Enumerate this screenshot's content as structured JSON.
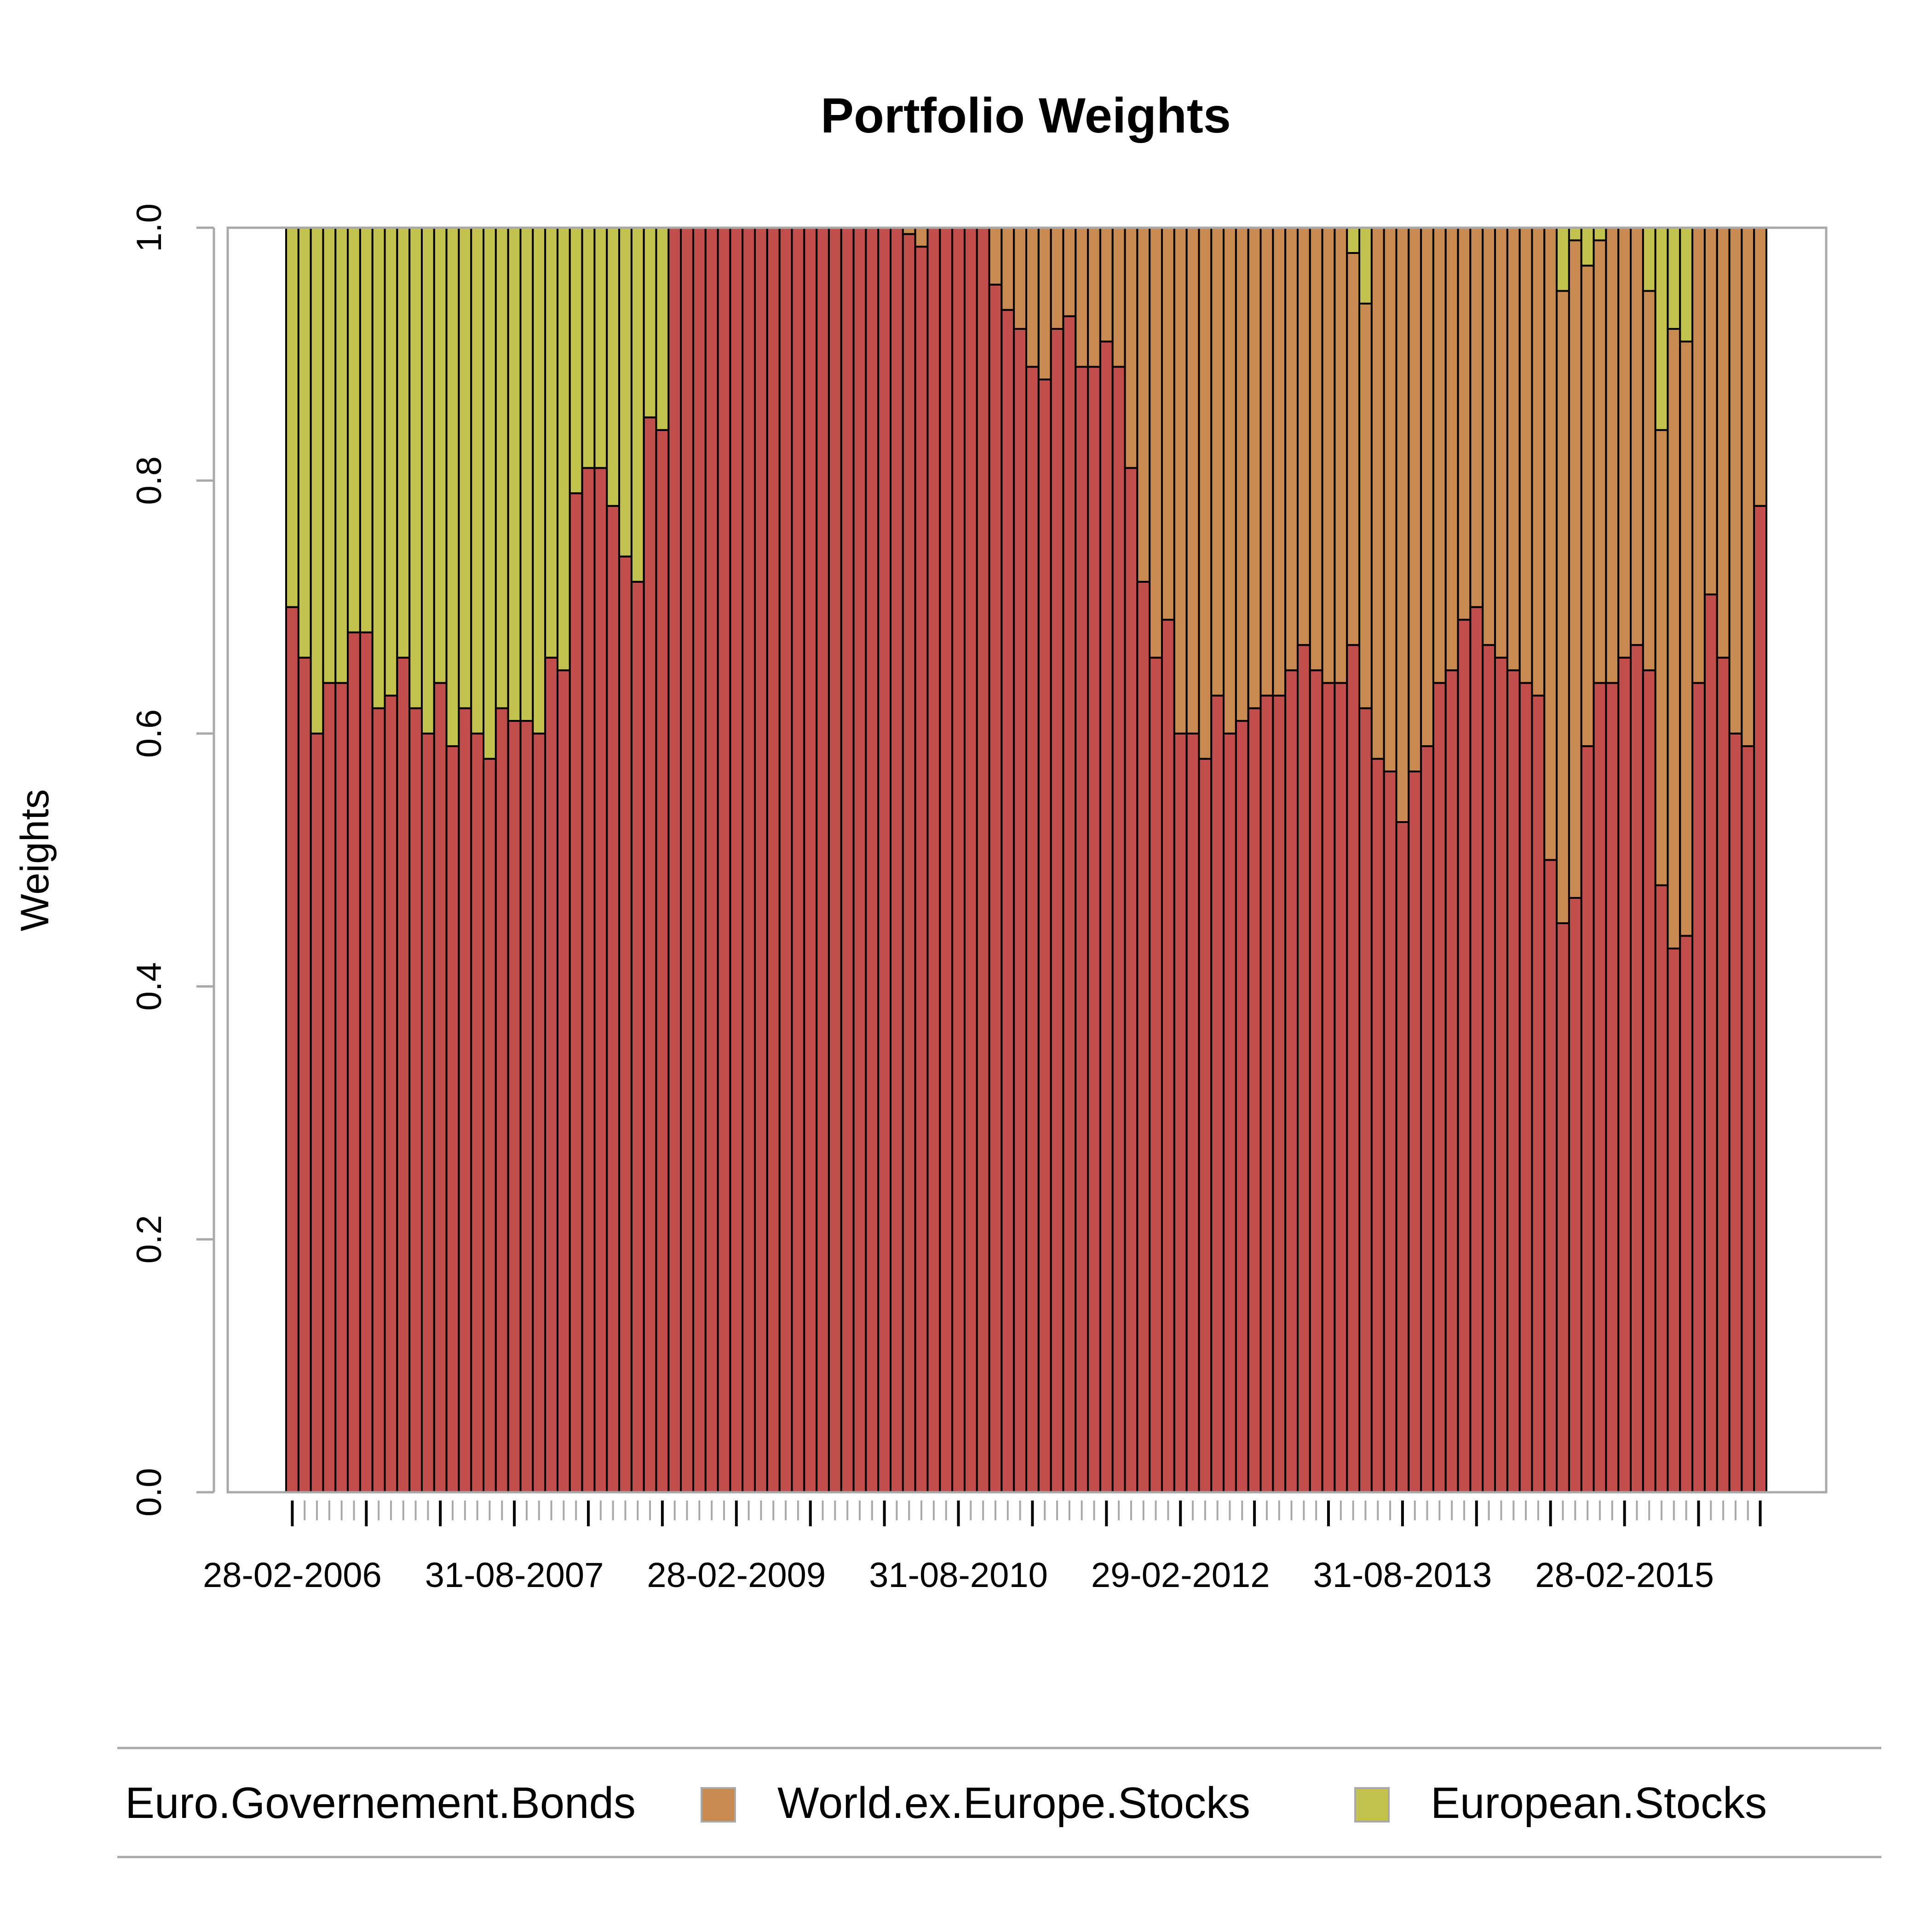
{
  "chart_data": {
    "type": "bar",
    "stacked": true,
    "title": "Portfolio Weights",
    "ylabel": "Weights",
    "xlabel": "",
    "ylim": [
      0,
      1
    ],
    "yticks": [
      "0.0",
      "0.2",
      "0.4",
      "0.6",
      "0.8",
      "1.0"
    ],
    "xtick_labels": [
      {
        "index": 0,
        "label": "28-02-2006"
      },
      {
        "index": 18,
        "label": "31-08-2007"
      },
      {
        "index": 36,
        "label": "28-02-2009"
      },
      {
        "index": 54,
        "label": "31-08-2010"
      },
      {
        "index": 72,
        "label": "29-02-2012"
      },
      {
        "index": 90,
        "label": "31-08-2013"
      },
      {
        "index": 108,
        "label": "28-02-2015"
      }
    ],
    "series": [
      {
        "name": "Euro.Governement.Bonds",
        "color": "#c24d4d",
        "values": [
          0.7,
          0.66,
          0.6,
          0.64,
          0.64,
          0.68,
          0.68,
          0.62,
          0.63,
          0.66,
          0.62,
          0.6,
          0.64,
          0.59,
          0.62,
          0.6,
          0.58,
          0.62,
          0.61,
          0.61,
          0.6,
          0.66,
          0.65,
          0.79,
          0.81,
          0.81,
          0.78,
          0.74,
          0.72,
          0.85,
          0.84,
          1,
          1,
          1,
          1,
          1,
          1,
          1,
          1,
          1,
          1,
          1,
          1,
          1,
          1,
          1,
          1,
          1,
          1,
          1,
          0.995,
          0.985,
          1,
          1,
          1,
          1,
          1,
          0.955,
          0.935,
          0.92,
          0.89,
          0.88,
          0.92,
          0.93,
          0.89,
          0.89,
          0.91,
          0.89,
          0.81,
          0.72,
          0.66,
          0.69,
          0.6,
          0.6,
          0.58,
          0.63,
          0.6,
          0.61,
          0.62,
          0.63,
          0.63,
          0.65,
          0.67,
          0.65,
          0.64,
          0.64,
          0.67,
          0.62,
          0.58,
          0.57,
          0.53,
          0.57,
          0.59,
          0.64,
          0.65,
          0.69,
          0.7,
          0.67,
          0.66,
          0.65,
          0.64,
          0.63,
          0.5,
          0.45,
          0.47,
          0.59,
          0.64,
          0.64,
          0.66,
          0.67,
          0.65,
          0.48,
          0.43,
          0.44,
          0.64,
          0.71,
          0.66,
          0.6,
          0.59,
          0.78
        ]
      },
      {
        "name": "World.ex.Europe.Stocks",
        "color": "#c88a4f",
        "values": [
          0,
          0,
          0,
          0,
          0,
          0,
          0,
          0,
          0,
          0,
          0,
          0,
          0,
          0,
          0,
          0,
          0,
          0,
          0,
          0,
          0,
          0,
          0,
          0,
          0,
          0,
          0,
          0,
          0,
          0,
          0,
          0,
          0,
          0,
          0,
          0,
          0,
          0,
          0,
          0,
          0,
          0,
          0,
          0,
          0,
          0,
          0,
          0,
          0,
          0,
          0.005,
          0.015,
          0,
          0,
          0,
          0,
          0,
          0.045,
          0.065,
          0.08,
          0.11,
          0.12,
          0.08,
          0.07,
          0.11,
          0.11,
          0.09,
          0.11,
          0.19,
          0.28,
          0.34,
          0.31,
          0.4,
          0.4,
          0.42,
          0.37,
          0.4,
          0.39,
          0.38,
          0.37,
          0.37,
          0.35,
          0.33,
          0.35,
          0.36,
          0.36,
          0.31,
          0.32,
          0.42,
          0.43,
          0.47,
          0.43,
          0.41,
          0.36,
          0.35,
          0.31,
          0.3,
          0.33,
          0.34,
          0.35,
          0.36,
          0.37,
          0.5,
          0.5,
          0.52,
          0.38,
          0.35,
          0.36,
          0.34,
          0.33,
          0.3,
          0.36,
          0.49,
          0.47,
          0.36,
          0.29,
          0.34,
          0.4,
          0.41,
          0.22
        ]
      },
      {
        "name": "European.Stocks",
        "color": "#c2c24d",
        "values": [
          0.3,
          0.34,
          0.4,
          0.36,
          0.36,
          0.32,
          0.32,
          0.38,
          0.37,
          0.34,
          0.38,
          0.4,
          0.36,
          0.41,
          0.38,
          0.4,
          0.42,
          0.38,
          0.39,
          0.39,
          0.4,
          0.34,
          0.35,
          0.21,
          0.19,
          0.19,
          0.22,
          0.26,
          0.28,
          0.15,
          0.16,
          0,
          0,
          0,
          0,
          0,
          0,
          0,
          0,
          0,
          0,
          0,
          0,
          0,
          0,
          0,
          0,
          0,
          0,
          0,
          0,
          0,
          0,
          0,
          0,
          0,
          0,
          0,
          0,
          0,
          0,
          0,
          0,
          0,
          0,
          0,
          0,
          0,
          0,
          0,
          0,
          0,
          0,
          0,
          0,
          0,
          0,
          0,
          0,
          0,
          0,
          0,
          0,
          0,
          0,
          0,
          0.02,
          0.06,
          0,
          0,
          0,
          0,
          0,
          0,
          0,
          0,
          0,
          0,
          0,
          0,
          0,
          0,
          0,
          0.05,
          0.01,
          0.03,
          0.01,
          0,
          0,
          0,
          0.05,
          0.16,
          0.08,
          0.09,
          0,
          0,
          0,
          0,
          0,
          0
        ]
      }
    ],
    "legend": {
      "position": "bottom",
      "entries": [
        {
          "label": "Euro.Governement.Bonds",
          "swatch": false
        },
        {
          "label": "World.ex.Europe.Stocks",
          "swatch": true,
          "color": "#c88a4f"
        },
        {
          "label": "European.Stocks",
          "swatch": true,
          "color": "#c2c24d"
        }
      ]
    }
  }
}
